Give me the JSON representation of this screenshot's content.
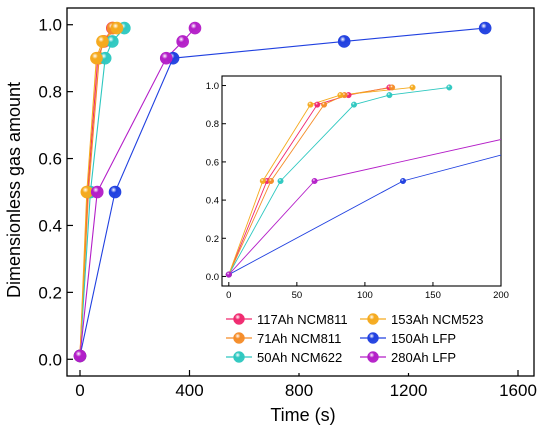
{
  "chart_data": {
    "type": "scatter",
    "xlabel": "Time (s)",
    "ylabel": "Dimensionless gas amount",
    "main": {
      "xlim": [
        0,
        1600
      ],
      "ylim": [
        -0.05,
        1.05
      ],
      "xticks": [
        "0",
        "400",
        "800",
        "1200",
        "1600"
      ],
      "yticks": [
        "0.0",
        "0.2",
        "0.4",
        "0.6",
        "0.8",
        "1.0"
      ]
    },
    "inset": {
      "xlim": [
        -5,
        200
      ],
      "ylim": [
        -0.05,
        1.05
      ],
      "xticks": [
        "0",
        "50",
        "100",
        "150",
        "200"
      ],
      "yticks": [
        "0.0",
        "0.2",
        "0.4",
        "0.6",
        "0.8",
        "1.0"
      ]
    },
    "series": [
      {
        "name": "117Ah NCM811",
        "color": "#f0286e",
        "x": [
          0,
          28,
          65,
          88,
          118
        ],
        "y": [
          0.01,
          0.5,
          0.9,
          0.95,
          0.99
        ]
      },
      {
        "name": "71Ah NCM811",
        "color": "#f58c28",
        "x": [
          0,
          31,
          70,
          85,
          120
        ],
        "y": [
          0.01,
          0.5,
          0.9,
          0.95,
          0.99
        ]
      },
      {
        "name": "50Ah NCM622",
        "color": "#2ec8c0",
        "x": [
          0,
          38,
          92,
          118,
          162
        ],
        "y": [
          0.01,
          0.5,
          0.9,
          0.95,
          0.99
        ]
      },
      {
        "name": "153Ah NCM523",
        "color": "#f5aa1e",
        "x": [
          0,
          25,
          60,
          82,
          135
        ],
        "y": [
          0.01,
          0.5,
          0.9,
          0.95,
          0.99
        ]
      },
      {
        "name": "150Ah LFP",
        "color": "#2040e0",
        "x": [
          0,
          128,
          340,
          965,
          1480
        ],
        "y": [
          0.01,
          0.5,
          0.9,
          0.95,
          0.99
        ]
      },
      {
        "name": "280Ah LFP",
        "color": "#b41ec8",
        "x": [
          0,
          63,
          315,
          375,
          420
        ],
        "y": [
          0.01,
          0.5,
          0.9,
          0.95,
          0.99
        ]
      }
    ],
    "legend_order": [
      0,
      3,
      1,
      4,
      2,
      5
    ]
  }
}
